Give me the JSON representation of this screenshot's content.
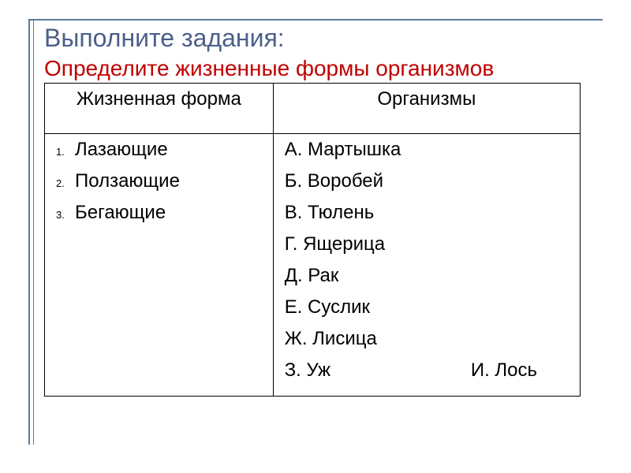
{
  "title": {
    "main": "Выполните задания:",
    "sub": "Определите жизненные формы организмов"
  },
  "table": {
    "headers": {
      "left": "Жизненная форма",
      "right": "Организмы"
    },
    "life_forms": [
      {
        "num": "1.",
        "label": "Лазающие"
      },
      {
        "num": "2.",
        "label": "Ползающие"
      },
      {
        "num": "3.",
        "label": "Бегающие"
      }
    ],
    "organisms": [
      "А. Мартышка",
      "Б. Воробей",
      "В. Тюлень",
      "Г. Ящерица",
      "Д. Рак",
      "Е. Суслик",
      "Ж. Лисица"
    ],
    "last_organisms": {
      "first": "З. Уж",
      "second": "И. Лось"
    }
  },
  "colors": {
    "title_main": "#4b5f8a",
    "title_sub": "#c00000",
    "border": "#5b7a9a",
    "text": "#000000",
    "background": "#ffffff"
  },
  "fonts": {
    "title_main_size": 32,
    "title_sub_size": 28,
    "header_size": 24,
    "body_size": 24,
    "number_size": 13
  }
}
